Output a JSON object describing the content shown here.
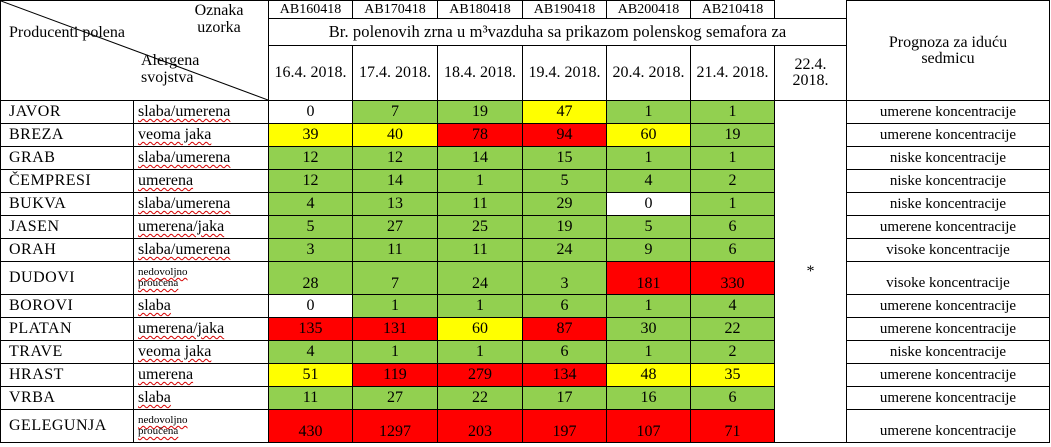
{
  "header": {
    "producers_label": "Producenti polena",
    "sample_label": "Oznaka uzorka",
    "allergen_label": "Alergena svojstva",
    "title": "Br. polenovih zrna u m³vazduha sa prikazom polenskog semafora za",
    "forecast_label": "Prognoza za iduću sedmicu",
    "sample_codes": [
      "AB160418",
      "AB170418",
      "AB180418",
      "AB190418",
      "AB200418",
      "AB210418"
    ],
    "dates": [
      "16.4. 2018.",
      "17.4. 2018.",
      "18.4. 2018.",
      "19.4. 2018.",
      "20.4. 2018.",
      "21.4. 2018.",
      "22.4. 2018."
    ]
  },
  "last_column_mark": "*",
  "colors": {
    "green": "#92d050",
    "yellow": "#ffff00",
    "red": "#ff0000",
    "white": "#ffffff"
  },
  "rows": [
    {
      "name": "JAVOR",
      "allergen": "slaba/umerena",
      "values": [
        "0",
        "7",
        "19",
        "47",
        "1",
        "1"
      ],
      "levels": [
        "white",
        "green",
        "green",
        "yellow",
        "green",
        "green"
      ],
      "forecast": "umerene koncentracije"
    },
    {
      "name": "BREZA",
      "allergen": "veoma jaka",
      "values": [
        "39",
        "40",
        "78",
        "94",
        "60",
        "19"
      ],
      "levels": [
        "yellow",
        "yellow",
        "red",
        "red",
        "yellow",
        "green"
      ],
      "forecast": "umerene koncentracije"
    },
    {
      "name": "GRAB",
      "allergen": "slaba/umerena",
      "values": [
        "12",
        "12",
        "14",
        "15",
        "1",
        "1"
      ],
      "levels": [
        "green",
        "green",
        "green",
        "green",
        "green",
        "green"
      ],
      "forecast": "niske koncentracije"
    },
    {
      "name": "ČEMPRESI",
      "allergen": "umerena",
      "values": [
        "12",
        "14",
        "1",
        "5",
        "4",
        "2"
      ],
      "levels": [
        "green",
        "green",
        "green",
        "green",
        "green",
        "green"
      ],
      "forecast": "niske koncentracije"
    },
    {
      "name": "BUKVA",
      "allergen": "slaba/umerena",
      "values": [
        "4",
        "13",
        "11",
        "29",
        "0",
        "1"
      ],
      "levels": [
        "green",
        "green",
        "green",
        "green",
        "white",
        "green"
      ],
      "forecast": "niske koncentracije"
    },
    {
      "name": "JASEN",
      "allergen": "umerena/jaka",
      "values": [
        "5",
        "27",
        "25",
        "19",
        "5",
        "6"
      ],
      "levels": [
        "green",
        "green",
        "green",
        "green",
        "green",
        "green"
      ],
      "forecast": "umerene koncentracije"
    },
    {
      "name": "ORAH",
      "allergen": "slaba/umerena",
      "values": [
        "3",
        "11",
        "11",
        "24",
        "9",
        "6"
      ],
      "levels": [
        "green",
        "green",
        "green",
        "green",
        "green",
        "green"
      ],
      "forecast": "visoke koncentracije"
    },
    {
      "name": "DUDOVI",
      "allergen": "nedovoljno proučena",
      "values": [
        "28",
        "7",
        "24",
        "3",
        "181",
        "330"
      ],
      "levels": [
        "green",
        "green",
        "green",
        "green",
        "red",
        "red"
      ],
      "forecast": "visoke koncentracije"
    },
    {
      "name": "BOROVI",
      "allergen": "slaba",
      "values": [
        "0",
        "1",
        "1",
        "6",
        "1",
        "4"
      ],
      "levels": [
        "white",
        "green",
        "green",
        "green",
        "green",
        "green"
      ],
      "forecast": "umerene koncentracije"
    },
    {
      "name": "PLATAN",
      "allergen": "umerena/jaka",
      "values": [
        "135",
        "131",
        "60",
        "87",
        "30",
        "22"
      ],
      "levels": [
        "red",
        "red",
        "yellow",
        "red",
        "green",
        "green"
      ],
      "forecast": "umerene koncentracije"
    },
    {
      "name": "TRAVE",
      "allergen": "veoma jaka",
      "values": [
        "4",
        "1",
        "1",
        "6",
        "1",
        "2"
      ],
      "levels": [
        "green",
        "green",
        "green",
        "green",
        "green",
        "green"
      ],
      "forecast": "niske koncentracije"
    },
    {
      "name": "HRAST",
      "allergen": "umerena",
      "values": [
        "51",
        "119",
        "279",
        "134",
        "48",
        "35"
      ],
      "levels": [
        "yellow",
        "red",
        "red",
        "red",
        "yellow",
        "yellow"
      ],
      "forecast": "umerene koncentracije"
    },
    {
      "name": "VRBA",
      "allergen": "slaba",
      "values": [
        "11",
        "27",
        "22",
        "17",
        "16",
        "6"
      ],
      "levels": [
        "green",
        "green",
        "green",
        "green",
        "green",
        "green"
      ],
      "forecast": "umerene koncentracije"
    },
    {
      "name": "GELEGUNJA",
      "allergen": "nedovoljno proučena",
      "values": [
        "430",
        "1297",
        "203",
        "197",
        "107",
        "71"
      ],
      "levels": [
        "red",
        "red",
        "red",
        "red",
        "red",
        "red"
      ],
      "forecast": "umerene koncentracije"
    }
  ]
}
